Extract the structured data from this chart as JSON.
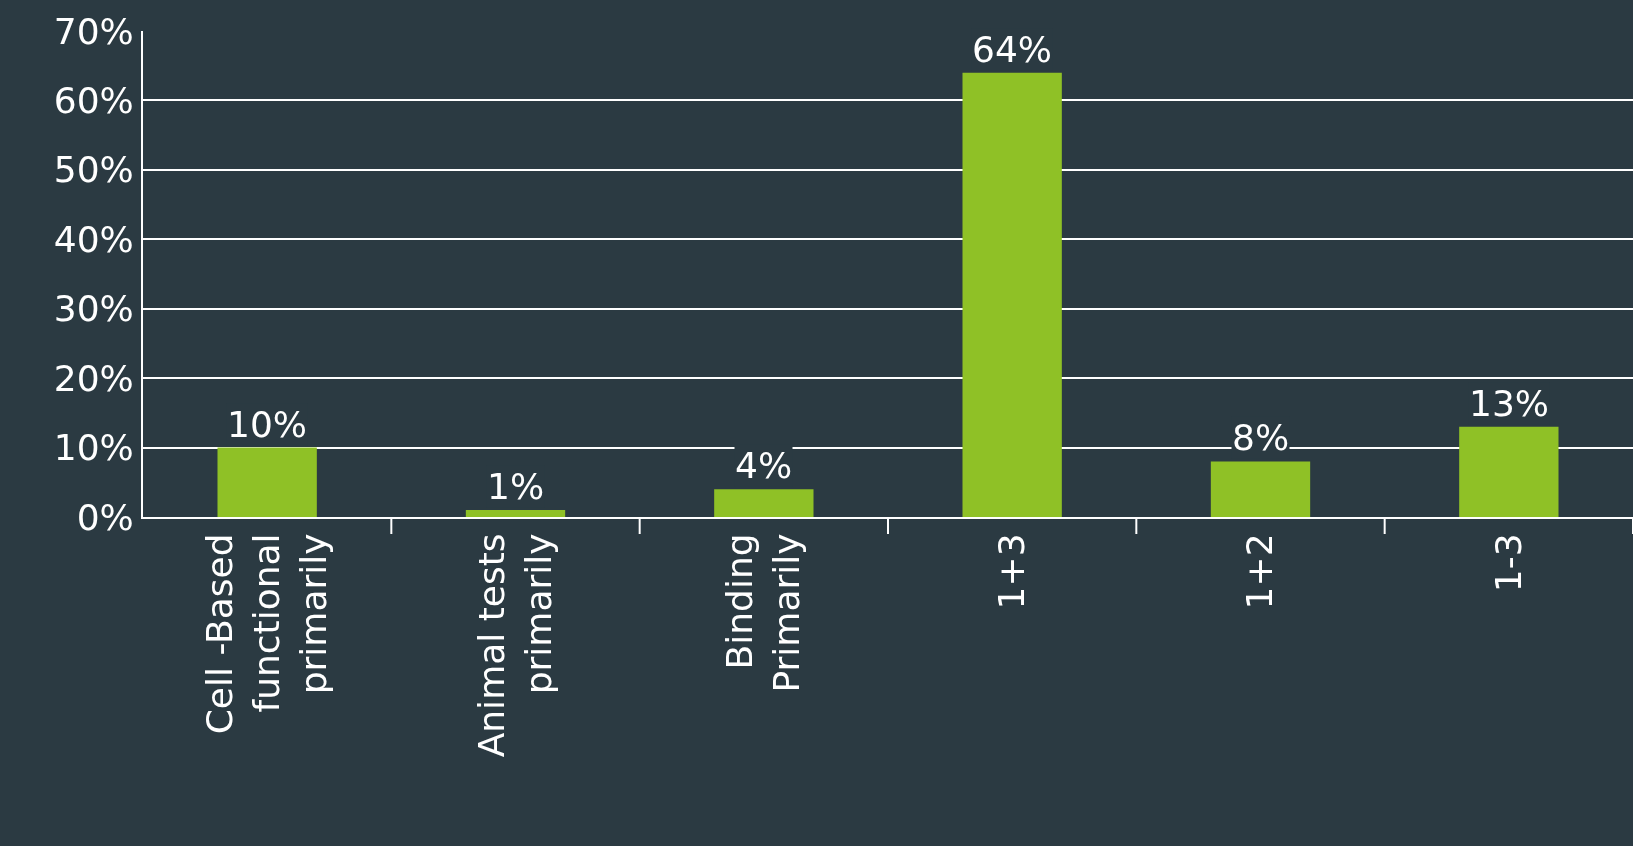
{
  "chart_data": {
    "type": "bar",
    "categories": [
      "Cell -Based\nfunctional\nprimarily",
      "Animal tests\nprimarily",
      "Binding\nPrimarily",
      "1+3",
      "1+2",
      "1-3"
    ],
    "values": [
      10,
      1,
      4,
      64,
      8,
      13
    ],
    "value_labels": [
      "10%",
      "1%",
      "4%",
      "64%",
      "8%",
      "13%"
    ],
    "color": "#8fc126",
    "ylim": [
      0,
      70
    ],
    "yticks": [
      {
        "value": 0,
        "label": "0%"
      },
      {
        "value": 10,
        "label": "10%"
      },
      {
        "value": 20,
        "label": "20%"
      },
      {
        "value": 30,
        "label": "30%"
      },
      {
        "value": 40,
        "label": "40%"
      },
      {
        "value": 50,
        "label": "50%"
      },
      {
        "value": 60,
        "label": "60%"
      },
      {
        "value": 70,
        "label": "70%"
      }
    ],
    "grid": "y",
    "legend": false
  }
}
